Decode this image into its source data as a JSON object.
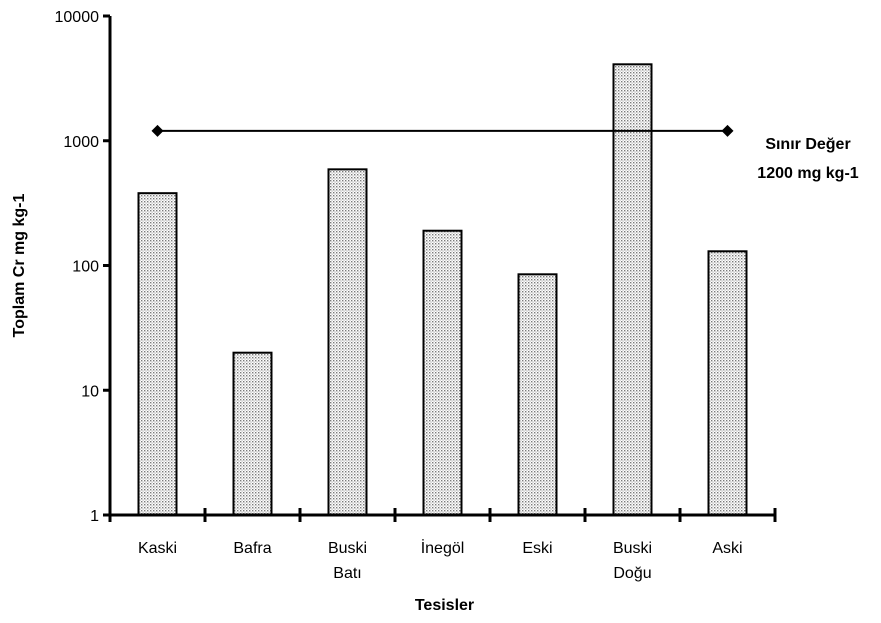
{
  "chart_data": {
    "type": "bar",
    "categories": [
      [
        "Kaski"
      ],
      [
        "Bafra"
      ],
      [
        "Buski",
        "Batı"
      ],
      [
        "İnegöl"
      ],
      [
        "Eski"
      ],
      [
        "Buski",
        "Doğu"
      ],
      [
        "Aski"
      ]
    ],
    "values": [
      380,
      20,
      590,
      190,
      85,
      4100,
      130
    ],
    "xlabel": "Tesisler",
    "ylabel": "Toplam Cr mg kg-1",
    "y_scale": "log",
    "ylim": [
      1,
      10000
    ],
    "yticks": [
      1,
      10,
      100,
      1000,
      10000
    ],
    "ytick_labels": [
      "1",
      "10",
      "100",
      "1000",
      "10000"
    ],
    "grid": false,
    "bar_fill": "dotted-gray",
    "reference_line": {
      "value": 1200,
      "labels": [
        "Sınır Değer",
        "1200 mg kg-1"
      ],
      "marker": "diamond"
    }
  }
}
